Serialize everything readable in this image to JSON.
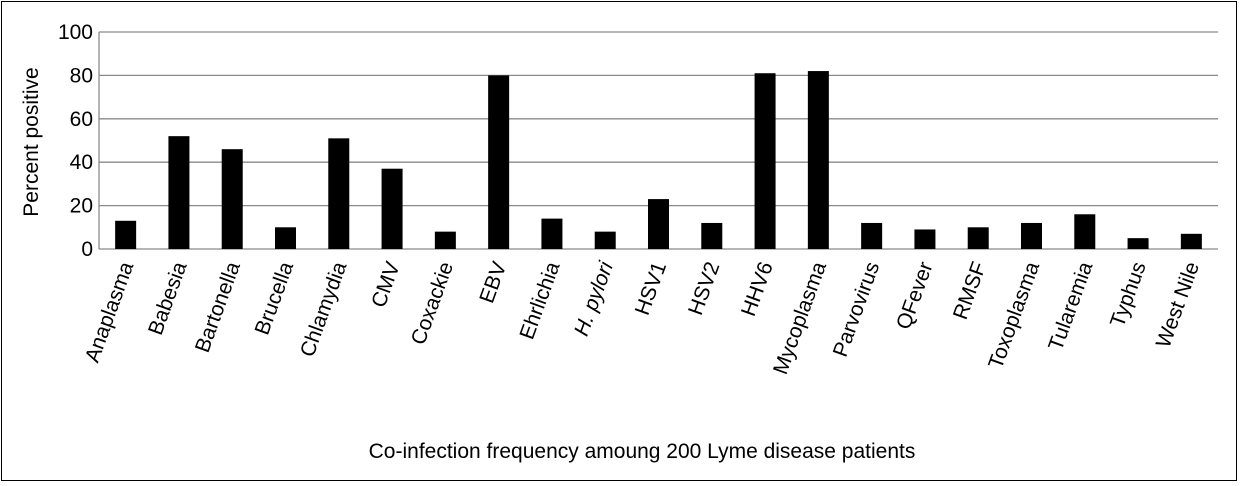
{
  "chart_data": {
    "type": "bar",
    "xlabel": "Co-infection frequency amoung 200 Lyme disease patients",
    "ylabel": "Percent positive",
    "ylim": [
      0,
      100
    ],
    "yticks": [
      "0",
      "20",
      "40",
      "60",
      "80",
      "100"
    ],
    "grid": true,
    "bar_color": "#000000",
    "categories": [
      "Anaplasma",
      "Babesia",
      "Bartonella",
      "Brucella",
      "Chlamydia",
      "CMV",
      "Coxackie",
      "EBV",
      "Ehrlichia",
      "H. pylori",
      "HSV1",
      "HSV2",
      "HHV6",
      "Mycoplasma",
      "Parvovirus",
      "QFever",
      "RMSF",
      "Toxoplasma",
      "Tularemia",
      "Typhus",
      "West Nile"
    ],
    "values": [
      13,
      52,
      46,
      10,
      51,
      37,
      8,
      80,
      14,
      8,
      23,
      12,
      81,
      82,
      12,
      9,
      10,
      12,
      16,
      5,
      7
    ]
  }
}
